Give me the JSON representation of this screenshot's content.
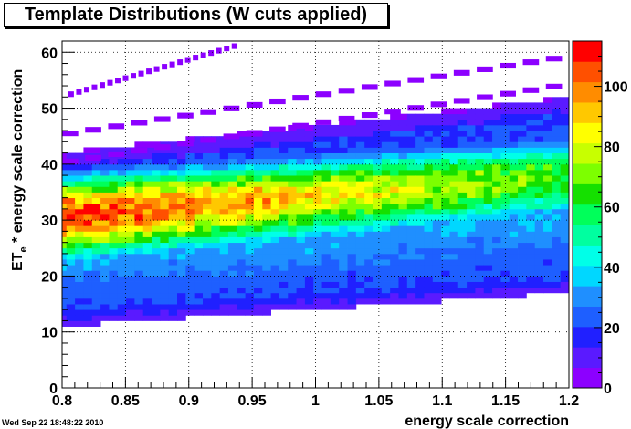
{
  "window": {
    "timestamp": "Wed Sep 22 18:48:22 2010"
  },
  "chart_data": {
    "type": "heatmap",
    "title": "Template Distributions (W cuts applied)",
    "xlabel": "energy scale correction",
    "ylabel_main": "ET",
    "ylabel_sub": "e",
    "ylabel_rest": " * energy scale correction",
    "xlim": [
      0.8,
      1.2
    ],
    "ylim": [
      0,
      62
    ],
    "xticks": [
      0.8,
      0.85,
      0.9,
      0.95,
      1,
      1.05,
      1.1,
      1.15,
      1.2
    ],
    "xtick_labels": [
      "0.8",
      "0.85",
      "0.9",
      "0.95",
      "1",
      "1.05",
      "1.1",
      "1.15",
      "1.2"
    ],
    "yticks": [
      0,
      10,
      20,
      30,
      40,
      50,
      60
    ],
    "ytick_labels": [
      "0",
      "10",
      "20",
      "30",
      "40",
      "50",
      "60"
    ],
    "zlim": [
      0,
      115
    ],
    "zticks": [
      0,
      20,
      40,
      60,
      80,
      100
    ],
    "ztick_labels": [
      "0",
      "20",
      "40",
      "60",
      "80",
      "100"
    ],
    "grid": true,
    "colormap": [
      "#8c00ff",
      "#5a1aff",
      "#2020ff",
      "#1e5fff",
      "#1f8fff",
      "#00d7ff",
      "#00ffe8",
      "#00ffa0",
      "#00ff5a",
      "#15e000",
      "#7dff00",
      "#c8ff00",
      "#ffff00",
      "#ffc800",
      "#ff8c00",
      "#ff5000",
      "#ff0000"
    ],
    "binning": {
      "x_bins": 61,
      "x_min": 0.79,
      "x_max": 1.2,
      "y_bin_width": 1
    },
    "band_model": {
      "description": "Diagonal ridge: peak position grows with x",
      "peak_y_at_x080": 31,
      "peak_y_at_x120": 38,
      "peak_height_at_x080": 110,
      "peak_height_at_x120": 65
    },
    "diagonal_streaks": [
      {
        "x0": 0.805,
        "y0": 52,
        "x1": 0.94,
        "y1": 61
      },
      {
        "x0": 0.8,
        "y0": 45,
        "x1": 1.2,
        "y1": 59
      },
      {
        "x0": 0.8,
        "y0": 40,
        "x1": 1.2,
        "y1": 54
      }
    ]
  }
}
